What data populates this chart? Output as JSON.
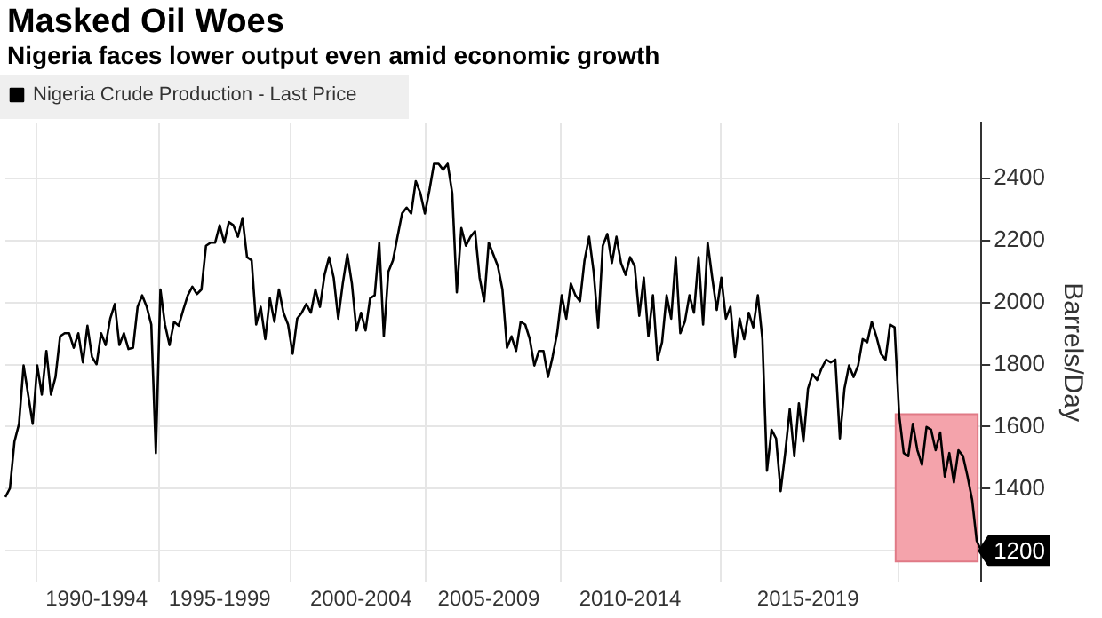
{
  "chart_data": {
    "type": "line",
    "title": "Masked Oil Woes",
    "subtitle": "Nigeria faces lower output even amid economic growth",
    "ylabel": "Barrels/Day",
    "categories": [
      null,
      null,
      null,
      null,
      null,
      null,
      null,
      null,
      null,
      null,
      null,
      null,
      null,
      null,
      null,
      null,
      null,
      null,
      null,
      null,
      "1990-1994",
      null,
      null,
      null,
      null,
      null,
      null,
      null,
      null,
      null,
      null,
      null,
      null,
      null,
      null,
      null,
      null,
      null,
      null,
      null,
      null,
      null,
      null,
      null,
      null,
      null,
      null,
      "1995-1999",
      null,
      null,
      null,
      null,
      null,
      null,
      null,
      null,
      null,
      null,
      null,
      null,
      null,
      null,
      null,
      null,
      null,
      null,
      null,
      null,
      null,
      null,
      null,
      null,
      null,
      null,
      null,
      null,
      null,
      null,
      "2000-2004",
      null,
      null,
      null,
      null,
      null,
      null,
      null,
      null,
      null,
      null,
      null,
      null,
      null,
      null,
      null,
      null,
      null,
      null,
      null,
      null,
      null,
      null,
      null,
      null,
      null,
      null,
      null,
      "2005-2009",
      null,
      null,
      null,
      null,
      null,
      null,
      null,
      null,
      null,
      null,
      null,
      null,
      null,
      null,
      null,
      null,
      null,
      null,
      null,
      null,
      null,
      null,
      null,
      null,
      null,
      null,
      null,
      null,
      null,
      null,
      "2010-2014",
      null,
      null,
      null,
      null,
      null,
      null,
      null,
      null,
      null,
      null,
      null,
      null,
      null,
      null,
      null,
      null,
      null,
      null,
      null,
      null,
      null,
      null,
      null,
      null,
      null,
      null,
      null,
      null,
      null,
      null,
      null,
      null,
      null,
      null,
      null,
      null,
      null,
      null,
      "2015-2019",
      null,
      null,
      null,
      null,
      null,
      null,
      null,
      null,
      null,
      null,
      null,
      null,
      null,
      null,
      null,
      null,
      null,
      null,
      null,
      null,
      null,
      null,
      null,
      null,
      null,
      null,
      null,
      null,
      null,
      null,
      null,
      null,
      null,
      null,
      null,
      null,
      null,
      null
    ],
    "ylim": [
      1100,
      2580
    ],
    "yticks": [
      {
        "value": 1200,
        "label": null
      },
      1400,
      1600,
      1800,
      2000,
      2200,
      2400
    ],
    "grid": true,
    "legend": "top left",
    "marker": "none",
    "line_style": "solid",
    "bands": [
      {
        "axis": "y",
        "from": 1166,
        "to": 1640,
        "color": "#f4a3ab"
      }
    ],
    "series": [
      {
        "name": "Nigeria Crude Production - Last Price",
        "color": "#000000",
        "values": [
          1373,
          1401,
          1552,
          1609,
          1797,
          1703,
          1609,
          1797,
          1703,
          1844,
          1703,
          1760,
          1891,
          1901,
          1901,
          1854,
          1901,
          1807,
          1925,
          1825,
          1801,
          1901,
          1863,
          1948,
          1995,
          1863,
          1901,
          1850,
          1854,
          1986,
          2023,
          1986,
          1929,
          1515,
          2042,
          1929,
          1863,
          1938,
          1925,
          1976,
          2023,
          2051,
          2027,
          2042,
          2183,
          2193,
          2193,
          2249,
          2193,
          2259,
          2249,
          2212,
          2272,
          2146,
          2136,
          1929,
          1986,
          1882,
          2014,
          1938,
          2042,
          1967,
          1929,
          1835,
          1948,
          1967,
          1995,
          1967,
          2042,
          1986,
          2089,
          2146,
          2080,
          1948,
          2061,
          2155,
          2061,
          1910,
          1967,
          1910,
          2014,
          2023,
          2193,
          1891,
          2099,
          2136,
          2212,
          2287,
          2306,
          2287,
          2391,
          2353,
          2287,
          2362,
          2447,
          2447,
          2428,
          2447,
          2353,
          2033,
          2240,
          2183,
          2212,
          2230,
          2080,
          2004,
          2193,
          2155,
          2117,
          2042,
          1854,
          1891,
          1844,
          1938,
          1929,
          1882,
          1797,
          1844,
          1844,
          1760,
          1825,
          1901,
          2023,
          1948,
          2061,
          2023,
          2004,
          2136,
          2212,
          2099,
          1920,
          2183,
          2221,
          2127,
          2212,
          2127,
          2089,
          2146,
          2117,
          1957,
          2080,
          1891,
          2023,
          1816,
          1872,
          2023,
          1948,
          2146,
          1901,
          1938,
          2023,
          1967,
          2146,
          1929,
          2193,
          2080,
          1976,
          2080,
          1948,
          1986,
          1825,
          1948,
          1882,
          1967,
          1920,
          2023,
          1882,
          1458,
          1590,
          1562,
          1392,
          1515,
          1656,
          1505,
          1675,
          1552,
          1722,
          1769,
          1750,
          1788,
          1816,
          1807,
          1816,
          1562,
          1722,
          1797,
          1760,
          1797,
          1882,
          1872,
          1938,
          1891,
          1835,
          1816,
          1929,
          1920,
          1637,
          1515,
          1505,
          1609,
          1524,
          1477,
          1599,
          1590,
          1524,
          1581,
          1439,
          1515,
          1420,
          1524,
          1505,
          1439,
          1364,
          1232,
          1200
        ],
        "value_labels": [
          null,
          null,
          null,
          null,
          null,
          null,
          null,
          null,
          null,
          null,
          null,
          null,
          null,
          null,
          null,
          null,
          null,
          null,
          null,
          null,
          null,
          null,
          null,
          null,
          null,
          null,
          null,
          null,
          null,
          null,
          null,
          null,
          null,
          null,
          null,
          null,
          null,
          null,
          null,
          null,
          null,
          null,
          null,
          null,
          null,
          null,
          null,
          null,
          null,
          null,
          null,
          null,
          null,
          null,
          null,
          null,
          null,
          null,
          null,
          null,
          null,
          null,
          null,
          null,
          null,
          null,
          null,
          null,
          null,
          null,
          null,
          null,
          null,
          null,
          null,
          null,
          null,
          null,
          null,
          null,
          null,
          null,
          null,
          null,
          null,
          null,
          null,
          null,
          null,
          null,
          null,
          null,
          null,
          null,
          null,
          null,
          null,
          null,
          null,
          null,
          null,
          null,
          null,
          null,
          null,
          null,
          null,
          null,
          null,
          null,
          null,
          null,
          null,
          null,
          null,
          null,
          null,
          null,
          null,
          null,
          null,
          null,
          null,
          null,
          null,
          null,
          null,
          null,
          null,
          null,
          null,
          null,
          null,
          null,
          null,
          null,
          null,
          null,
          null,
          null,
          null,
          null,
          null,
          null,
          null,
          null,
          null,
          null,
          null,
          null,
          null,
          null,
          null,
          null,
          null,
          null,
          null,
          null,
          null,
          null,
          null,
          null,
          null,
          null,
          null,
          null,
          null,
          null,
          null,
          null,
          null,
          null,
          null,
          null,
          null,
          null,
          null,
          null,
          null,
          null,
          null,
          null,
          null,
          null,
          null,
          null,
          null,
          null,
          null,
          null,
          null,
          null,
          null,
          null,
          null,
          null,
          null,
          null,
          null,
          null,
          null,
          null,
          null,
          null,
          null,
          null,
          null,
          null,
          null,
          null,
          null,
          null,
          null,
          null,
          "1200"
        ]
      }
    ]
  }
}
